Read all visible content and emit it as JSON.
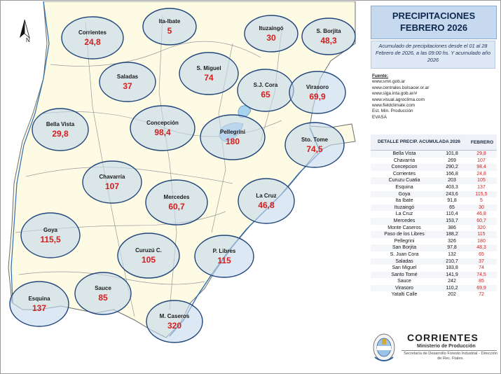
{
  "title_line1": "PRECIPITACIONES",
  "title_line2": "FEBRERO 2026",
  "subtitle": "Acumulado de precipitaciones desde el 01 al 28 Febrero de 2026, a las 09:00 hs. Y acumulado año 2026",
  "north_label": "N",
  "sources": {
    "heading": "Fuente:",
    "items": [
      "www.smn.gob.ar",
      "www.centrales.bolsacer.or.ar",
      "www.siga.inta.gob.ar/#",
      "www.visual.agroclima.com",
      "www.fieldclimate.com",
      "Est. Min. Producción",
      "EVASA"
    ]
  },
  "table": {
    "header_detail": "DETALLE PRECIP. ACUMULADA 2026",
    "header_month": "FEBRERO",
    "rows": [
      {
        "name": "Bella Vista",
        "annual": "101,8",
        "feb": "29,8"
      },
      {
        "name": "Chavarria",
        "annual": "269",
        "feb": "107"
      },
      {
        "name": "Concepcion",
        "annual": "290,2",
        "feb": "98,4"
      },
      {
        "name": "Corrientes",
        "annual": "166,8",
        "feb": "24,8"
      },
      {
        "name": "Curuzu Cuatia",
        "annual": "203",
        "feb": "105"
      },
      {
        "name": "Esquina",
        "annual": "403,3",
        "feb": "137"
      },
      {
        "name": "Goya",
        "annual": "243,6",
        "feb": "115,5"
      },
      {
        "name": "Ita Ibate",
        "annual": "91,8",
        "feb": "5"
      },
      {
        "name": "Ituzaingó",
        "annual": "65",
        "feb": "30"
      },
      {
        "name": "La Cruz",
        "annual": "110,4",
        "feb": "46,8"
      },
      {
        "name": "Mercedes",
        "annual": "153,7",
        "feb": "60,7"
      },
      {
        "name": "Monte Caseros",
        "annual": "386",
        "feb": "320"
      },
      {
        "name": "Paso de los Libres",
        "annual": "188,2",
        "feb": "115"
      },
      {
        "name": "Pellegrini",
        "annual": "326",
        "feb": "180"
      },
      {
        "name": "San Borjita",
        "annual": "97,8",
        "feb": "48,3"
      },
      {
        "name": "S. Juan Cora",
        "annual": "132",
        "feb": "65"
      },
      {
        "name": "Saladas",
        "annual": "210,7",
        "feb": "37"
      },
      {
        "name": "San Miguel",
        "annual": "183,8",
        "feb": "74"
      },
      {
        "name": "Santo Tomé",
        "annual": "141,9",
        "feb": "74,5"
      },
      {
        "name": "Sauce",
        "annual": "242",
        "feb": "85"
      },
      {
        "name": "Virasoro",
        "annual": "110,2",
        "feb": "69,9"
      },
      {
        "name": "Yatalti Calle",
        "annual": "202",
        "feb": "72"
      }
    ]
  },
  "stations": [
    {
      "name": "Corrientes",
      "value": "24,8"
    },
    {
      "name": "Ita-Ibate",
      "value": "5"
    },
    {
      "name": "Ituzaingó",
      "value": "30"
    },
    {
      "name": "S. Borjita",
      "value": "48,3"
    },
    {
      "name": "Saladas",
      "value": "37"
    },
    {
      "name": "S. Miguel",
      "value": "74"
    },
    {
      "name": "S.J. Cora",
      "value": "65"
    },
    {
      "name": "Virasoro",
      "value": "69,9"
    },
    {
      "name": "Bella Vista",
      "value": "29,8"
    },
    {
      "name": "Concepción",
      "value": "98,4"
    },
    {
      "name": "Pellegrini",
      "value": "180"
    },
    {
      "name": "Sto. Tome",
      "value": "74,5"
    },
    {
      "name": "Chavarría",
      "value": "107"
    },
    {
      "name": "Mercedes",
      "value": "60,7"
    },
    {
      "name": "La Cruz",
      "value": "46,8"
    },
    {
      "name": "Goya",
      "value": "115,5"
    },
    {
      "name": "Curuzú C.",
      "value": "105"
    },
    {
      "name": "P. Libres",
      "value": "115"
    },
    {
      "name": "Esquina",
      "value": "137"
    },
    {
      "name": "Sauce",
      "value": "85"
    },
    {
      "name": "M. Caseros",
      "value": "320"
    }
  ],
  "logo": {
    "org": "CORRIENTES",
    "ministry": "Ministerio de Producción",
    "secretariat": "Secretaría de Desarrollo Foresto Industrial - Dirección de Rec. Ftales."
  },
  "colors": {
    "map_fill": "#fdfbe4",
    "map_outside": "#ffffff",
    "bubble_fill": "#c5d8ec",
    "bubble_stroke": "#21457a",
    "value_text": "#d41e1e",
    "water": "#a8d3ee"
  }
}
